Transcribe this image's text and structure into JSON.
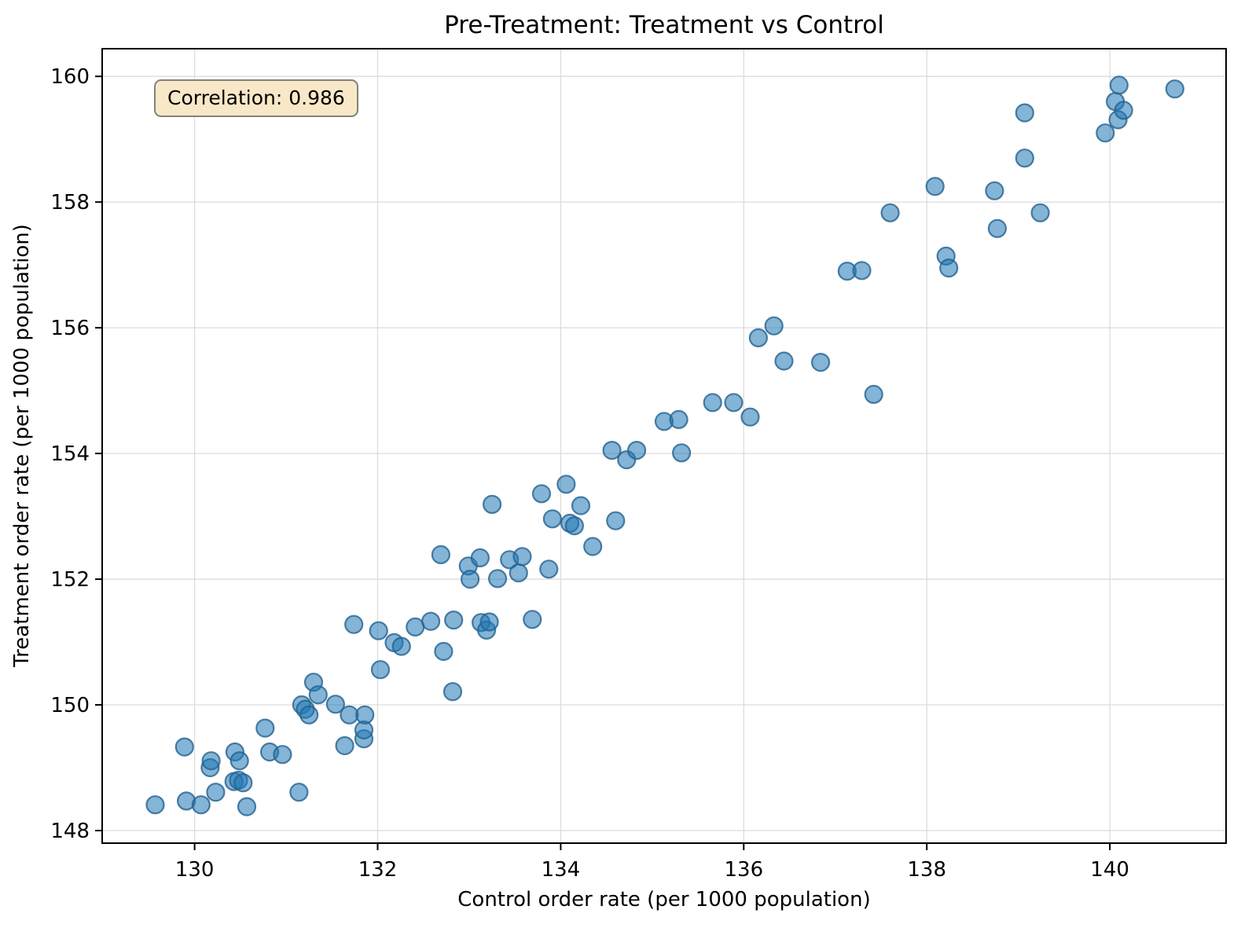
{
  "figure": {
    "kind": "matplotlib-style scatter figure"
  },
  "chart_data": {
    "type": "scatter",
    "title": "Pre-Treatment: Treatment vs Control",
    "xlabel": "Control order rate (per 1000 population)",
    "ylabel": "Treatment order rate (per 1000 population)",
    "annotation": {
      "text": "Correlation: 0.986",
      "value": 0.986
    },
    "xlim": [
      128.99,
      141.27
    ],
    "ylim": [
      147.8,
      160.44
    ],
    "xticks": [
      130,
      132,
      134,
      136,
      138,
      140
    ],
    "yticks": [
      148,
      150,
      152,
      154,
      156,
      158,
      160
    ],
    "grid": true,
    "legend_position": "none",
    "colors": {
      "marker_fill": "#1f77b4",
      "marker_fill_opacity": 0.55,
      "marker_edge": "#24618e",
      "marker_edge_opacity": 0.8,
      "grid": "#dcdcdc",
      "spine": "#000000",
      "annotation_bg": "#f9e8c8",
      "annotation_border": "#82827a"
    },
    "marker_radius": 11,
    "points": [
      [
        129.57,
        148.41
      ],
      [
        129.89,
        149.33
      ],
      [
        129.91,
        148.47
      ],
      [
        130.07,
        148.41
      ],
      [
        130.17,
        149.0
      ],
      [
        130.18,
        149.11
      ],
      [
        130.23,
        148.61
      ],
      [
        130.43,
        148.78
      ],
      [
        130.44,
        149.25
      ],
      [
        130.48,
        148.8
      ],
      [
        130.49,
        149.11
      ],
      [
        130.53,
        148.76
      ],
      [
        130.57,
        148.38
      ],
      [
        130.77,
        149.63
      ],
      [
        130.82,
        149.25
      ],
      [
        130.96,
        149.21
      ],
      [
        131.14,
        148.61
      ],
      [
        131.17,
        150.0
      ],
      [
        131.21,
        149.93
      ],
      [
        131.25,
        149.84
      ],
      [
        131.3,
        150.36
      ],
      [
        131.35,
        150.16
      ],
      [
        131.54,
        150.01
      ],
      [
        131.64,
        149.35
      ],
      [
        131.69,
        149.84
      ],
      [
        131.74,
        151.28
      ],
      [
        131.85,
        149.46
      ],
      [
        131.85,
        149.6
      ],
      [
        131.86,
        149.84
      ],
      [
        132.01,
        151.18
      ],
      [
        132.03,
        150.56
      ],
      [
        132.18,
        150.99
      ],
      [
        132.26,
        150.93
      ],
      [
        132.41,
        151.24
      ],
      [
        132.58,
        151.33
      ],
      [
        132.69,
        152.39
      ],
      [
        132.72,
        150.85
      ],
      [
        132.82,
        150.21
      ],
      [
        132.83,
        151.35
      ],
      [
        132.99,
        152.21
      ],
      [
        133.01,
        152.0
      ],
      [
        133.12,
        152.34
      ],
      [
        133.13,
        151.31
      ],
      [
        133.19,
        151.19
      ],
      [
        133.22,
        151.32
      ],
      [
        133.25,
        153.19
      ],
      [
        133.31,
        152.01
      ],
      [
        133.44,
        152.31
      ],
      [
        133.54,
        152.1
      ],
      [
        133.58,
        152.36
      ],
      [
        133.69,
        151.36
      ],
      [
        133.79,
        153.36
      ],
      [
        133.87,
        152.16
      ],
      [
        133.91,
        152.96
      ],
      [
        134.06,
        153.51
      ],
      [
        134.1,
        152.89
      ],
      [
        134.15,
        152.85
      ],
      [
        134.22,
        153.17
      ],
      [
        134.35,
        152.52
      ],
      [
        134.56,
        154.05
      ],
      [
        134.6,
        152.93
      ],
      [
        134.72,
        153.9
      ],
      [
        134.83,
        154.05
      ],
      [
        135.13,
        154.51
      ],
      [
        135.29,
        154.54
      ],
      [
        135.32,
        154.01
      ],
      [
        135.66,
        154.81
      ],
      [
        135.89,
        154.81
      ],
      [
        136.07,
        154.58
      ],
      [
        136.16,
        155.84
      ],
      [
        136.33,
        156.03
      ],
      [
        136.44,
        155.47
      ],
      [
        136.84,
        155.45
      ],
      [
        137.13,
        156.9
      ],
      [
        137.29,
        156.91
      ],
      [
        137.42,
        154.94
      ],
      [
        137.6,
        157.83
      ],
      [
        138.09,
        158.25
      ],
      [
        138.21,
        157.14
      ],
      [
        138.24,
        156.95
      ],
      [
        138.74,
        158.18
      ],
      [
        138.77,
        157.58
      ],
      [
        139.07,
        158.7
      ],
      [
        139.07,
        159.42
      ],
      [
        139.24,
        157.83
      ],
      [
        139.95,
        159.1
      ],
      [
        140.06,
        159.6
      ],
      [
        140.09,
        159.31
      ],
      [
        140.1,
        159.86
      ],
      [
        140.15,
        159.46
      ],
      [
        140.71,
        159.8
      ]
    ]
  }
}
